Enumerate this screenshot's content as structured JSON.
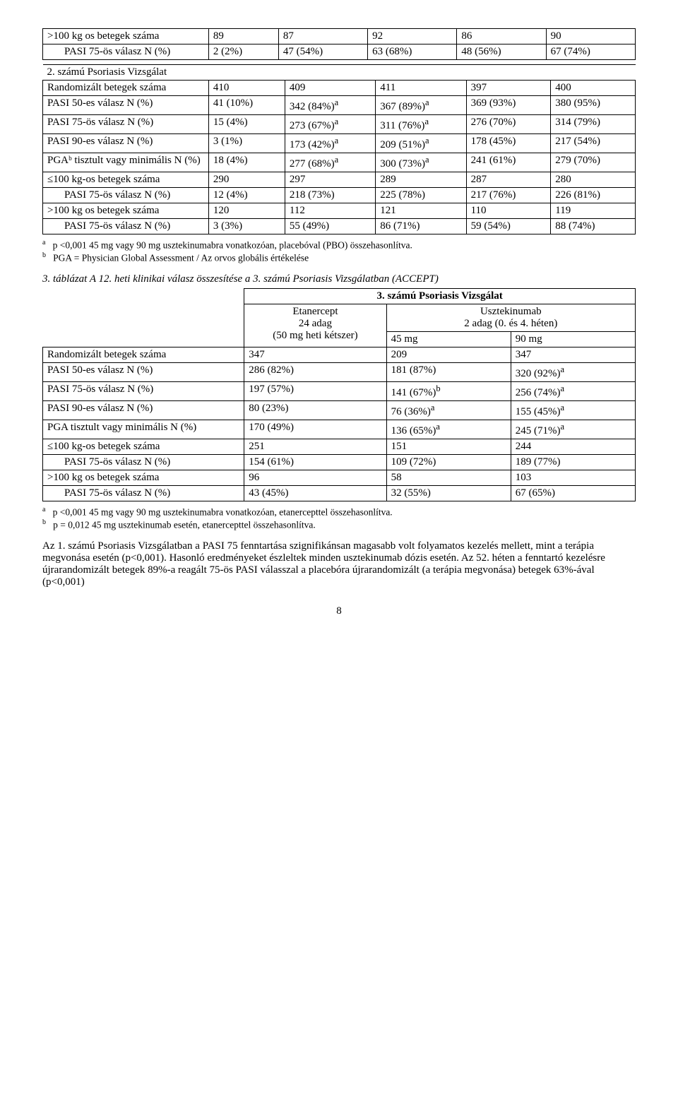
{
  "table1": {
    "rows": [
      {
        "label": ">100 kg os betegek száma",
        "c": [
          "89",
          "87",
          "92",
          "86",
          "90"
        ],
        "indent": false
      },
      {
        "label": "PASI 75-ös válasz N (%)",
        "c": [
          "2 (2%)",
          "47 (54%)",
          "63 (68%)",
          "48 (56%)",
          "67 (74%)"
        ],
        "indent": true
      }
    ]
  },
  "table2": {
    "header": "2. számú Psoriasis Vizsgálat",
    "rows": [
      {
        "label": "Randomizált betegek száma",
        "c": [
          "410",
          "409",
          "411",
          "397",
          "400"
        ],
        "sup": [
          "",
          "",
          "",
          "",
          ""
        ]
      },
      {
        "label": "PASI 50-es válasz N (%)",
        "c": [
          "41 (10%)",
          "342 (84%)",
          "367 (89%)",
          "369 (93%)",
          "380 (95%)"
        ],
        "sup": [
          "",
          "a",
          "a",
          "",
          ""
        ]
      },
      {
        "label": "PASI 75-ös válasz N (%)",
        "c": [
          "15 (4%)",
          "273 (67%)",
          "311 (76%)",
          "276 (70%)",
          "314 (79%)"
        ],
        "sup": [
          "",
          "a",
          "a",
          "",
          ""
        ]
      },
      {
        "label": "PASI 90-es válasz N (%)",
        "c": [
          "3 (1%)",
          "173 (42%)",
          "209 (51%)",
          "178 (45%)",
          "217 (54%)"
        ],
        "sup": [
          "",
          "a",
          "a",
          "",
          ""
        ]
      },
      {
        "label": "PGAᵇ tisztult vagy minimális N (%)",
        "c": [
          "18 (4%)",
          "277 (68%)",
          "300 (73%)",
          "241 (61%)",
          "279 (70%)"
        ],
        "sup": [
          "",
          "a",
          "a",
          "",
          ""
        ]
      },
      {
        "label": "≤100 kg-os betegek száma",
        "c": [
          "290",
          "297",
          "289",
          "287",
          "280"
        ],
        "sup": [
          "",
          "",
          "",
          "",
          ""
        ]
      },
      {
        "label": "PASI 75-ös válasz N (%)",
        "c": [
          "12 (4%)",
          "218 (73%)",
          "225 (78%)",
          "217 (76%)",
          "226 (81%)"
        ],
        "sup": [
          "",
          "",
          "",
          "",
          ""
        ],
        "indent": true
      },
      {
        "label": ">100 kg os betegek száma",
        "c": [
          "120",
          "112",
          "121",
          "110",
          "119"
        ],
        "sup": [
          "",
          "",
          "",
          "",
          ""
        ]
      },
      {
        "label": "PASI 75-ös válasz N (%)",
        "c": [
          "3 (3%)",
          "55 (49%)",
          "86 (71%)",
          "59 (54%)",
          "88 (74%)"
        ],
        "sup": [
          "",
          "",
          "",
          "",
          ""
        ],
        "indent": true
      }
    ]
  },
  "footnote1": {
    "a": "p <0,001 45 mg vagy 90 mg usztekinumabra vonatkozóan, placebóval (PBO) összehasonlítva.",
    "b": "PGA = Physician Global Assessment / Az orvos globális értékelése"
  },
  "table3": {
    "caption": "3. táblázat    A 12. heti klinikai válasz összesítése a 3. számú Psoriasis Vizsgálatban (ACCEPT)",
    "h1": "3. számú Psoriasis Vizsgálat",
    "h_etan": "Etanercept\n24 adag\n(50 mg heti kétszer)",
    "h_uszt": "Usztekinumab\n2 adag (0. és 4. héten)",
    "h_45": "45 mg",
    "h_90": "90 mg",
    "rows": [
      {
        "label": "Randomizált betegek száma",
        "c": [
          "347",
          "209",
          "347"
        ],
        "sup": [
          "",
          "",
          ""
        ]
      },
      {
        "label": "PASI 50-es válasz N (%)",
        "c": [
          "286 (82%)",
          "181 (87%)",
          "320 (92%)"
        ],
        "sup": [
          "",
          "",
          "a"
        ]
      },
      {
        "label": "PASI 75-ös válasz N (%)",
        "c": [
          "197 (57%)",
          "141 (67%)",
          "256 (74%)"
        ],
        "sup": [
          "",
          "b",
          "a"
        ]
      },
      {
        "label": "PASI 90-es válasz N (%)",
        "c": [
          "80 (23%)",
          "76 (36%)",
          "155 (45%)"
        ],
        "sup": [
          "",
          "a",
          "a"
        ]
      },
      {
        "label": "PGA tisztult vagy minimális N (%)",
        "c": [
          "170 (49%)",
          "136 (65%)",
          "245 (71%)"
        ],
        "sup": [
          "",
          "a",
          "a"
        ]
      },
      {
        "label": "≤100 kg-os betegek száma",
        "c": [
          "251",
          "151",
          "244"
        ],
        "sup": [
          "",
          "",
          ""
        ]
      },
      {
        "label": "PASI 75-ös válasz N (%)",
        "c": [
          "154 (61%)",
          "109 (72%)",
          "189 (77%)"
        ],
        "sup": [
          "",
          "",
          ""
        ],
        "indent": true
      },
      {
        "label": ">100 kg os betegek száma",
        "c": [
          "96",
          "58",
          "103"
        ],
        "sup": [
          "",
          "",
          ""
        ]
      },
      {
        "label": "PASI 75-ös válasz N (%)",
        "c": [
          "43 (45%)",
          "32 (55%)",
          "67 (65%)"
        ],
        "sup": [
          "",
          "",
          ""
        ],
        "indent": true
      }
    ]
  },
  "footnote2": {
    "a": "p <0,001 45 mg vagy 90 mg usztekinumabra vonatkozóan, etanercepttel összehasonlítva.",
    "b": "p = 0,012 45 mg usztekinumab esetén, etanercepttel összehasonlítva."
  },
  "paragraph": "Az 1. számú Psoriasis Vizsgálatban a PASI 75 fenntartása szignifikánsan magasabb volt folyamatos kezelés mellett, mint a terápia megvonása esetén (p<0,001). Hasonló eredményeket észleltek minden usztekinumab dózis esetén. Az 52. héten a fenntartó kezelésre újrarandomizált betegek 89%-a reagált 75-ös PASI válasszal a placebóra újrarandomizált (a terápia megvonása) betegek 63%-ával (p<0,001)",
  "page": "8"
}
